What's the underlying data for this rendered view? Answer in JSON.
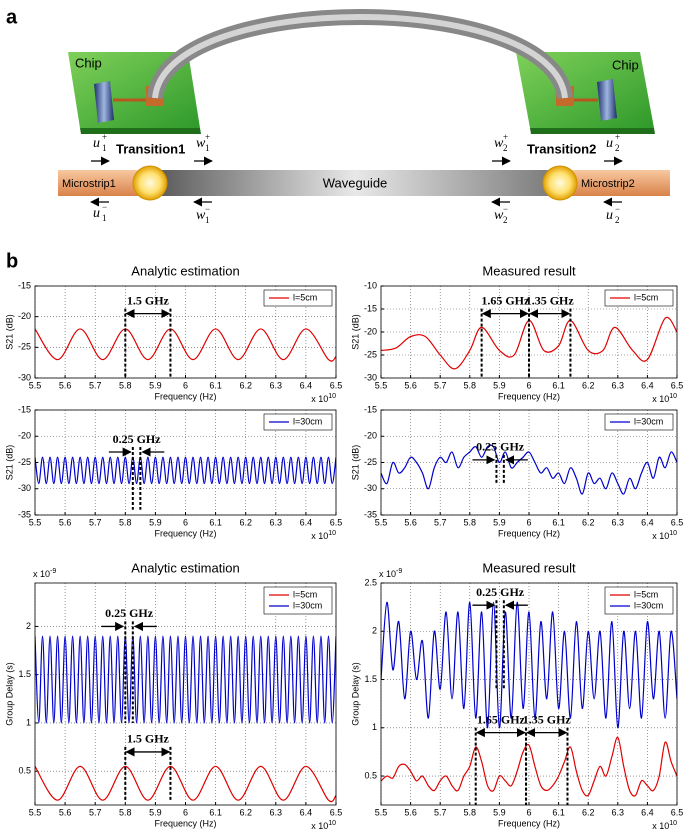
{
  "figure": {
    "panel_labels": [
      "a",
      "b"
    ],
    "diagram": {
      "chips": [
        "Chip",
        "Chip"
      ],
      "transitions": [
        "Transition1",
        "Transition2"
      ],
      "waveguide": "Waveguide",
      "microstrips": [
        "Microstrip1",
        "Microstrip2"
      ],
      "waves": [
        {
          "symbol": "u",
          "sub": "1",
          "sup": "+"
        },
        {
          "symbol": "w",
          "sub": "1",
          "sup": "+"
        },
        {
          "symbol": "w",
          "sub": "2",
          "sup": "+"
        },
        {
          "symbol": "u",
          "sub": "2",
          "sup": "+"
        },
        {
          "symbol": "u",
          "sub": "1",
          "sup": "−"
        },
        {
          "symbol": "w",
          "sub": "1",
          "sup": "−"
        },
        {
          "symbol": "w",
          "sub": "2",
          "sup": "−"
        },
        {
          "symbol": "u",
          "sub": "2",
          "sup": "−"
        }
      ]
    }
  },
  "chart_data": [
    {
      "type": "line",
      "title": "Analytic estimation",
      "x_label": "Frequency (Hz)",
      "y_label": "S21 (dB)",
      "x_multiplier": {
        "base": "x 10",
        "exp": "10"
      },
      "x": [
        5.5,
        5.575,
        5.65,
        5.725,
        5.8,
        5.875,
        5.95,
        6.025,
        6.1,
        6.175,
        6.25,
        6.325,
        6.4,
        6.475,
        6.5
      ],
      "series": [
        {
          "name": "l=5cm",
          "color": "#e00000",
          "values": [
            -22,
            -27,
            -22,
            -27,
            -22,
            -27,
            -22,
            -27,
            -22,
            -27,
            -22,
            -27,
            -22,
            -27,
            -26.5
          ]
        }
      ],
      "xlim": [
        5.5,
        6.5
      ],
      "xticks": [
        5.5,
        5.6,
        5.7,
        5.8,
        5.9,
        6,
        6.1,
        6.2,
        6.3,
        6.4,
        6.5
      ],
      "ylim": [
        -30,
        -15
      ],
      "yticks": [
        -30,
        -25,
        -20,
        -15
      ],
      "grid": true,
      "legend": "upper right",
      "annotations": [
        {
          "text": "1.5 GHz",
          "x1": 5.8,
          "x2": 5.95,
          "y": -19.5,
          "y_end": -30
        }
      ]
    },
    {
      "type": "line",
      "title": "Measured result",
      "x_label": "Frequency (Hz)",
      "y_label": "S21 (dB)",
      "x_multiplier": {
        "base": "x 10",
        "exp": "10"
      },
      "x": [
        5.5,
        5.55,
        5.6,
        5.65,
        5.7,
        5.75,
        5.8,
        5.84,
        5.9,
        5.95,
        6,
        6.05,
        6.1,
        6.14,
        6.2,
        6.25,
        6.29,
        6.35,
        6.4,
        6.46,
        6.5
      ],
      "series": [
        {
          "name": "l=5cm",
          "color": "#e00000",
          "values": [
            -24,
            -23.5,
            -21,
            -21,
            -25,
            -28,
            -24,
            -19,
            -24,
            -25,
            -17.5,
            -24,
            -23,
            -17.5,
            -24,
            -24,
            -19,
            -24,
            -26,
            -17,
            -20
          ]
        }
      ],
      "xlim": [
        5.5,
        6.5
      ],
      "xticks": [
        5.5,
        5.6,
        5.7,
        5.8,
        5.9,
        6,
        6.1,
        6.2,
        6.3,
        6.4,
        6.5
      ],
      "ylim": [
        -30,
        -10
      ],
      "yticks": [
        -30,
        -25,
        -20,
        -15,
        -10
      ],
      "grid": true,
      "legend": "upper right",
      "annotations": [
        {
          "text": "1.65 GHz",
          "x1": 5.84,
          "x2": 6,
          "y": -16,
          "y_end": -30
        },
        {
          "text": "1.35 GHz",
          "x1": 6,
          "x2": 6.14,
          "y": -16,
          "y_end": -30
        }
      ]
    },
    {
      "type": "line",
      "x_label": "Frequency (Hz)",
      "y_label": "S21 (dB)",
      "x_multiplier": {
        "base": "x 10",
        "exp": "10"
      },
      "x": [
        5.5,
        5.5125,
        5.525,
        5.5375,
        5.55,
        5.5625,
        5.575,
        5.5875,
        5.6,
        5.6125,
        5.625,
        5.6375,
        5.65,
        5.6625,
        5.675,
        5.6875,
        5.7,
        5.7125,
        5.725,
        5.7375,
        5.75,
        5.7625,
        5.775,
        5.7875,
        5.8,
        5.8125,
        5.825,
        5.8375,
        5.85,
        5.8625,
        5.875,
        5.8875,
        5.9,
        5.9125,
        5.925,
        5.9375,
        5.95,
        5.9625,
        5.975,
        5.9875,
        6,
        6.0125,
        6.025,
        6.0375,
        6.05,
        6.0625,
        6.075,
        6.0875,
        6.1,
        6.1125,
        6.125,
        6.1375,
        6.15,
        6.1625,
        6.175,
        6.1875,
        6.2,
        6.2125,
        6.225,
        6.2375,
        6.25,
        6.2625,
        6.275,
        6.2875,
        6.3,
        6.3125,
        6.325,
        6.3375,
        6.35,
        6.3625,
        6.375,
        6.3875,
        6.4,
        6.4125,
        6.425,
        6.4375,
        6.45,
        6.4625,
        6.475,
        6.4875,
        6.5
      ],
      "series": [
        {
          "name": "l=30cm",
          "color": "#0000cc",
          "values": [
            -24,
            -29,
            -24,
            -29,
            -24,
            -29,
            -24,
            -29,
            -24,
            -29,
            -24,
            -29,
            -24,
            -29,
            -24,
            -29,
            -24,
            -29,
            -24,
            -29,
            -24,
            -29,
            -24,
            -29,
            -24,
            -29,
            -24,
            -29,
            -24,
            -29,
            -24,
            -29,
            -24,
            -29,
            -24,
            -29,
            -24,
            -29,
            -24,
            -29,
            -24,
            -29,
            -24,
            -29,
            -24,
            -29,
            -24,
            -29,
            -24,
            -29,
            -24,
            -29,
            -24,
            -29,
            -24,
            -29,
            -24,
            -29,
            -24,
            -29,
            -24,
            -29,
            -24,
            -29,
            -24,
            -29,
            -24,
            -29,
            -24,
            -29,
            -24,
            -29,
            -24,
            -29,
            -24,
            -29,
            -24,
            -29,
            -24,
            -29,
            -24
          ]
        }
      ],
      "xlim": [
        5.5,
        6.5
      ],
      "xticks": [
        5.5,
        5.6,
        5.7,
        5.8,
        5.9,
        6,
        6.1,
        6.2,
        6.3,
        6.4,
        6.5
      ],
      "ylim": [
        -35,
        -15
      ],
      "yticks": [
        -35,
        -30,
        -25,
        -20,
        -15
      ],
      "grid": true,
      "legend": "upper right",
      "annotations": [
        {
          "text": "0.25 GHz",
          "x1": 5.825,
          "x2": 5.85,
          "y": -23,
          "y_end": -34
        }
      ]
    },
    {
      "type": "line",
      "x_label": "Frequency (Hz)",
      "y_label": "S21 (dB)",
      "x_multiplier": {
        "base": "x 10",
        "exp": "10"
      },
      "x": [
        5.5,
        5.52,
        5.54,
        5.56,
        5.58,
        5.6,
        5.62,
        5.64,
        5.66,
        5.68,
        5.7,
        5.72,
        5.74,
        5.76,
        5.78,
        5.8,
        5.82,
        5.84,
        5.86,
        5.88,
        5.9,
        5.92,
        5.94,
        5.96,
        5.98,
        6,
        6.02,
        6.04,
        6.06,
        6.08,
        6.1,
        6.12,
        6.14,
        6.16,
        6.18,
        6.2,
        6.22,
        6.24,
        6.26,
        6.28,
        6.3,
        6.32,
        6.34,
        6.36,
        6.38,
        6.4,
        6.42,
        6.44,
        6.46,
        6.48,
        6.5
      ],
      "series": [
        {
          "name": "l=30cm",
          "color": "#0000cc",
          "values": [
            -27,
            -29,
            -25,
            -27,
            -26,
            -24,
            -25,
            -27,
            -30,
            -26,
            -24,
            -25,
            -23,
            -26,
            -24,
            -23,
            -22,
            -24,
            -22,
            -22,
            -25,
            -23,
            -26,
            -25,
            -24,
            -23,
            -25,
            -27,
            -26,
            -28,
            -27,
            -29,
            -26,
            -28,
            -31,
            -27,
            -29,
            -28,
            -30,
            -27,
            -29,
            -31,
            -28,
            -30,
            -27,
            -25,
            -28,
            -24,
            -26,
            -23,
            -25
          ]
        }
      ],
      "xlim": [
        5.5,
        6.5
      ],
      "xticks": [
        5.5,
        5.6,
        5.7,
        5.8,
        5.9,
        6,
        6.1,
        6.2,
        6.3,
        6.4,
        6.5
      ],
      "ylim": [
        -35,
        -15
      ],
      "yticks": [
        -35,
        -30,
        -25,
        -20,
        -15
      ],
      "grid": true,
      "legend": "upper right",
      "annotations": [
        {
          "text": "0.25 GHz",
          "x1": 5.89,
          "x2": 5.915,
          "y": -24.5,
          "y_end": -29
        }
      ]
    },
    {
      "type": "line",
      "title": "Analytic estimation",
      "x_label": "Frequency (Hz)",
      "y_label": "Group Delay (s)",
      "x_multiplier": {
        "base": "x 10",
        "exp": "10"
      },
      "y_multiplier": {
        "base": "x 10",
        "exp": "-9"
      },
      "series": [
        {
          "name": "l=5cm",
          "color": "#e00000",
          "x": [
            5.5,
            5.575,
            5.65,
            5.725,
            5.8,
            5.875,
            5.95,
            6.025,
            6.1,
            6.175,
            6.25,
            6.325,
            6.4,
            6.475,
            6.5
          ],
          "values": [
            0.55,
            0.2,
            0.55,
            0.2,
            0.55,
            0.2,
            0.55,
            0.2,
            0.55,
            0.2,
            0.55,
            0.2,
            0.55,
            0.2,
            0.25
          ]
        },
        {
          "name": "l=30cm",
          "color": "#0000cc",
          "x": [
            5.5,
            5.5125,
            5.525,
            5.5375,
            5.55,
            5.5625,
            5.575,
            5.5875,
            5.6,
            5.6125,
            5.625,
            5.6375,
            5.65,
            5.6625,
            5.675,
            5.6875,
            5.7,
            5.7125,
            5.725,
            5.7375,
            5.75,
            5.7625,
            5.775,
            5.7875,
            5.8,
            5.8125,
            5.825,
            5.8375,
            5.85,
            5.8625,
            5.875,
            5.8875,
            5.9,
            5.9125,
            5.925,
            5.9375,
            5.95,
            5.9625,
            5.975,
            5.9875,
            6,
            6.0125,
            6.025,
            6.0375,
            6.05,
            6.0625,
            6.075,
            6.0875,
            6.1,
            6.1125,
            6.125,
            6.1375,
            6.15,
            6.1625,
            6.175,
            6.1875,
            6.2,
            6.2125,
            6.225,
            6.2375,
            6.25,
            6.2625,
            6.275,
            6.2875,
            6.3,
            6.3125,
            6.325,
            6.3375,
            6.35,
            6.3625,
            6.375,
            6.3875,
            6.4,
            6.4125,
            6.425,
            6.4375,
            6.45,
            6.4625,
            6.475,
            6.4875,
            6.5
          ],
          "values": [
            1.9,
            1,
            1.9,
            1,
            1.9,
            1,
            1.9,
            1,
            1.9,
            1,
            1.9,
            1,
            1.9,
            1,
            1.9,
            1,
            1.9,
            1,
            1.9,
            1,
            1.9,
            1,
            1.9,
            1,
            1.9,
            1,
            1.9,
            1,
            1.9,
            1,
            1.9,
            1,
            1.9,
            1,
            1.9,
            1,
            1.9,
            1,
            1.9,
            1,
            1.9,
            1,
            1.9,
            1,
            1.9,
            1,
            1.9,
            1,
            1.9,
            1,
            1.9,
            1,
            1.9,
            1,
            1.9,
            1,
            1.9,
            1,
            1.9,
            1,
            1.9,
            1,
            1.9,
            1,
            1.9,
            1,
            1.9,
            1,
            1.9,
            1,
            1.9,
            1,
            1.9,
            1,
            1.9,
            1,
            1.9,
            1,
            1.9,
            1,
            1.9
          ]
        }
      ],
      "xlim": [
        5.5,
        6.5
      ],
      "xticks": [
        5.5,
        5.6,
        5.7,
        5.8,
        5.9,
        6,
        6.1,
        6.2,
        6.3,
        6.4,
        6.5
      ],
      "ylim": [
        0.15,
        2.45
      ],
      "yticks": [
        0.5,
        1,
        1.5,
        2
      ],
      "grid": true,
      "legend": "upper right",
      "annotations": [
        {
          "text": "0.25 GHz",
          "x1": 5.8,
          "x2": 5.825,
          "y": 2,
          "y_end": 1
        },
        {
          "text": "1.5 GHz",
          "x1": 5.8,
          "x2": 5.95,
          "y": 0.7,
          "y_end": 0.2
        }
      ]
    },
    {
      "type": "line",
      "title": "Measured result",
      "x_label": "Frequency (Hz)",
      "y_label": "Group Delay (s)",
      "x_multiplier": {
        "base": "x 10",
        "exp": "10"
      },
      "y_multiplier": {
        "base": "x 10",
        "exp": "-9"
      },
      "x": [
        5.5,
        5.52,
        5.54,
        5.56,
        5.58,
        5.6,
        5.62,
        5.64,
        5.66,
        5.68,
        5.7,
        5.72,
        5.74,
        5.76,
        5.78,
        5.8,
        5.82,
        5.84,
        5.86,
        5.88,
        5.9,
        5.92,
        5.94,
        5.96,
        5.98,
        6,
        6.02,
        6.04,
        6.06,
        6.08,
        6.1,
        6.12,
        6.14,
        6.16,
        6.18,
        6.2,
        6.22,
        6.24,
        6.26,
        6.28,
        6.3,
        6.32,
        6.34,
        6.36,
        6.38,
        6.4,
        6.42,
        6.44,
        6.46,
        6.48,
        6.5
      ],
      "series": [
        {
          "name": "l=5cm",
          "color": "#e00000",
          "values": [
            0.45,
            0.5,
            0.48,
            0.6,
            0.62,
            0.55,
            0.45,
            0.5,
            0.4,
            0.35,
            0.45,
            0.5,
            0.4,
            0.35,
            0.5,
            0.6,
            0.8,
            0.65,
            0.4,
            0.35,
            0.5,
            0.45,
            0.4,
            0.55,
            0.75,
            0.82,
            0.6,
            0.4,
            0.35,
            0.4,
            0.5,
            0.65,
            0.8,
            0.55,
            0.35,
            0.3,
            0.45,
            0.6,
            0.5,
            0.7,
            0.9,
            0.6,
            0.35,
            0.3,
            0.45,
            0.4,
            0.35,
            0.5,
            0.85,
            0.65,
            0.5
          ]
        },
        {
          "name": "l=30cm",
          "color": "#0000cc",
          "values": [
            1.5,
            2.3,
            1.6,
            2.1,
            1.3,
            2,
            1.5,
            1.9,
            1.1,
            2,
            1.4,
            2.2,
            1.3,
            2.2,
            1.2,
            2.3,
            1.1,
            2.2,
            1,
            2.3,
            1,
            2.2,
            1.1,
            2.3,
            1.2,
            2.2,
            1.1,
            2.1,
            1.3,
            2.2,
            1.2,
            2,
            1.1,
            2.1,
            1.2,
            2,
            1.3,
            2,
            1.1,
            2.1,
            1,
            2,
            1.2,
            2,
            1.1,
            2.1,
            1.3,
            2,
            1.1,
            2,
            1.3
          ]
        }
      ],
      "xlim": [
        5.5,
        6.5
      ],
      "xticks": [
        5.5,
        5.6,
        5.7,
        5.8,
        5.9,
        6,
        6.1,
        6.2,
        6.3,
        6.4,
        6.5
      ],
      "ylim": [
        0.2,
        2.5
      ],
      "yticks": [
        0.5,
        1,
        1.5,
        2,
        2.5
      ],
      "grid": true,
      "legend": "upper right",
      "annotations": [
        {
          "text": "0.25 GHz",
          "x1": 5.89,
          "x2": 5.915,
          "y": 2.27,
          "y_end": 1.4
        },
        {
          "text": "1.65 GHz",
          "x1": 5.82,
          "x2": 5.99,
          "y": 0.95,
          "y_end": 0.2
        },
        {
          "text": "1.35 GHz",
          "x1": 5.99,
          "x2": 6.13,
          "y": 0.95,
          "y_end": 0.2
        }
      ]
    }
  ]
}
